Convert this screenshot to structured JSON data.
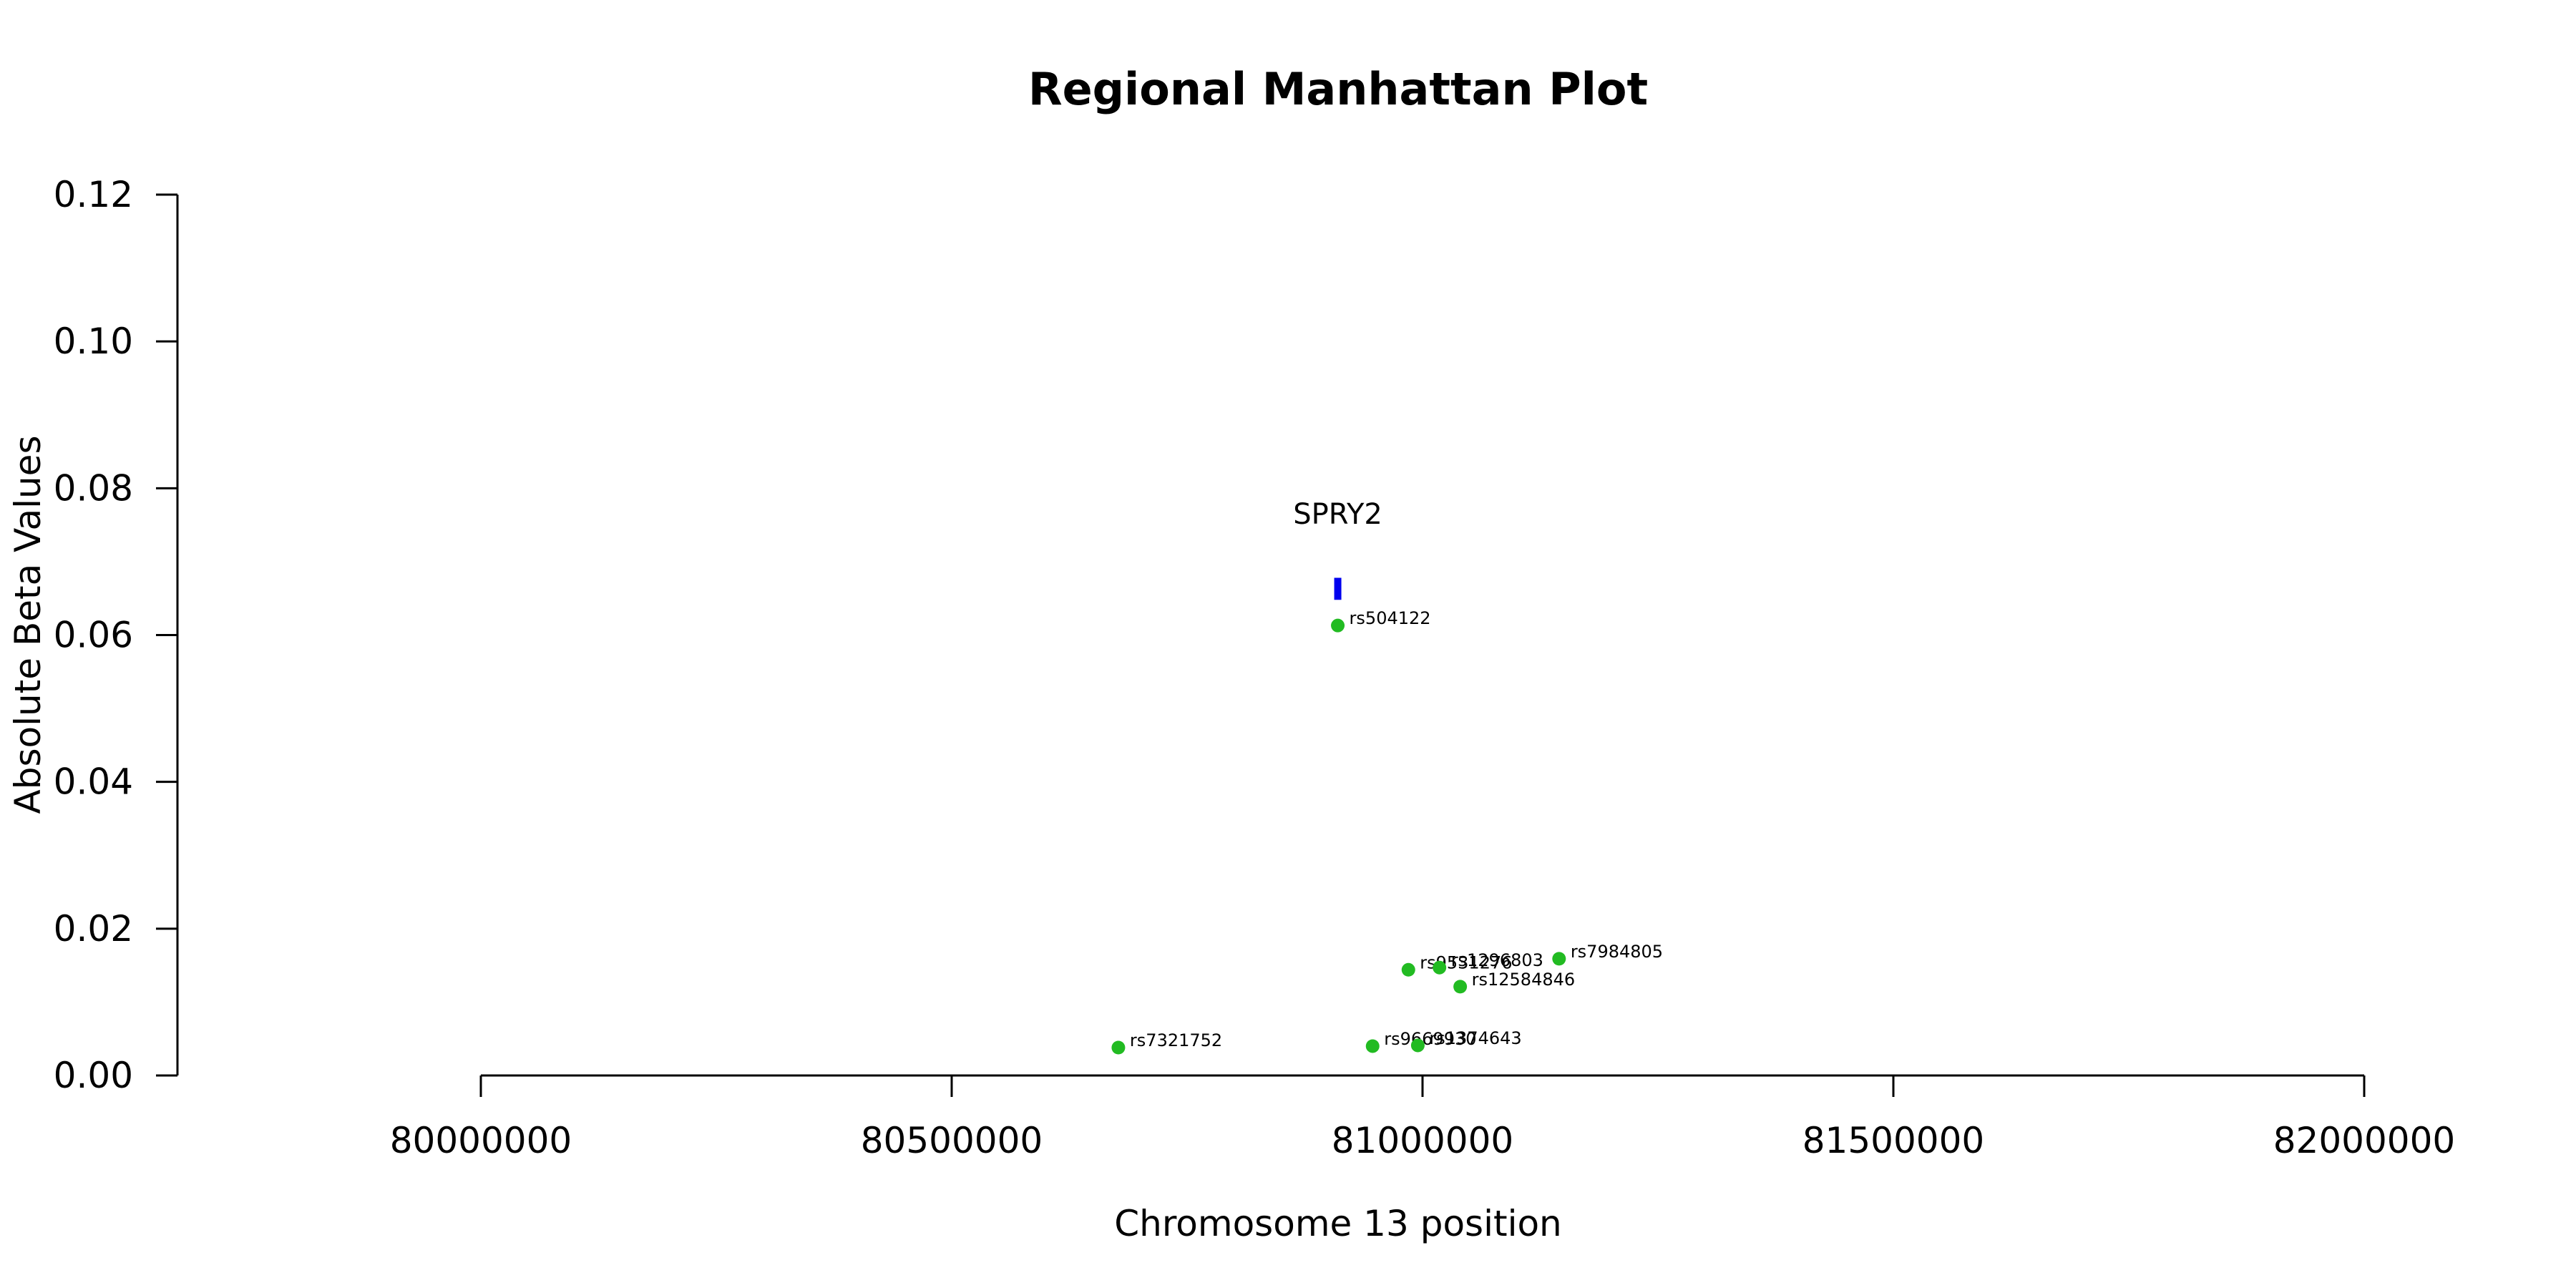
{
  "chart_data": {
    "type": "scatter",
    "title": "Regional Manhattan Plot",
    "xlabel": "Chromosome 13 position",
    "ylabel": "Absolute Beta Values",
    "xlim": [
      80000000,
      82000000
    ],
    "ylim": [
      0,
      0.12
    ],
    "x_ticks": [
      80000000,
      80500000,
      81000000,
      81500000,
      82000000
    ],
    "x_tick_labels": [
      "80000000",
      "80500000",
      "81000000",
      "81500000",
      "82000000"
    ],
    "y_ticks": [
      0,
      0.02,
      0.04,
      0.06,
      0.08,
      0.1,
      0.12
    ],
    "y_tick_labels": [
      "0.00",
      "0.02",
      "0.04",
      "0.06",
      "0.08",
      "0.10",
      "0.12"
    ],
    "grid": false,
    "point_color": "#22bb22",
    "gene_color": "#0000ee",
    "points": [
      {
        "label": "rs504122",
        "x": 80910000,
        "y": 0.0613
      },
      {
        "label": "rs7321752",
        "x": 80677000,
        "y": 0.0038
      },
      {
        "label": "rs9669930",
        "x": 80947000,
        "y": 0.004
      },
      {
        "label": "rs1374643",
        "x": 80995000,
        "y": 0.0041
      },
      {
        "label": "rs9531276",
        "x": 80985000,
        "y": 0.0144
      },
      {
        "label": "rs1296803",
        "x": 81018000,
        "y": 0.0147
      },
      {
        "label": "rs12584846",
        "x": 81040000,
        "y": 0.0121
      },
      {
        "label": "rs7984805",
        "x": 81145000,
        "y": 0.0159
      }
    ],
    "genes": [
      {
        "name": "SPRY2",
        "x_start": 80908000,
        "x_end": 80912000,
        "y_low": 0.0648,
        "y_high": 0.0678
      }
    ]
  }
}
